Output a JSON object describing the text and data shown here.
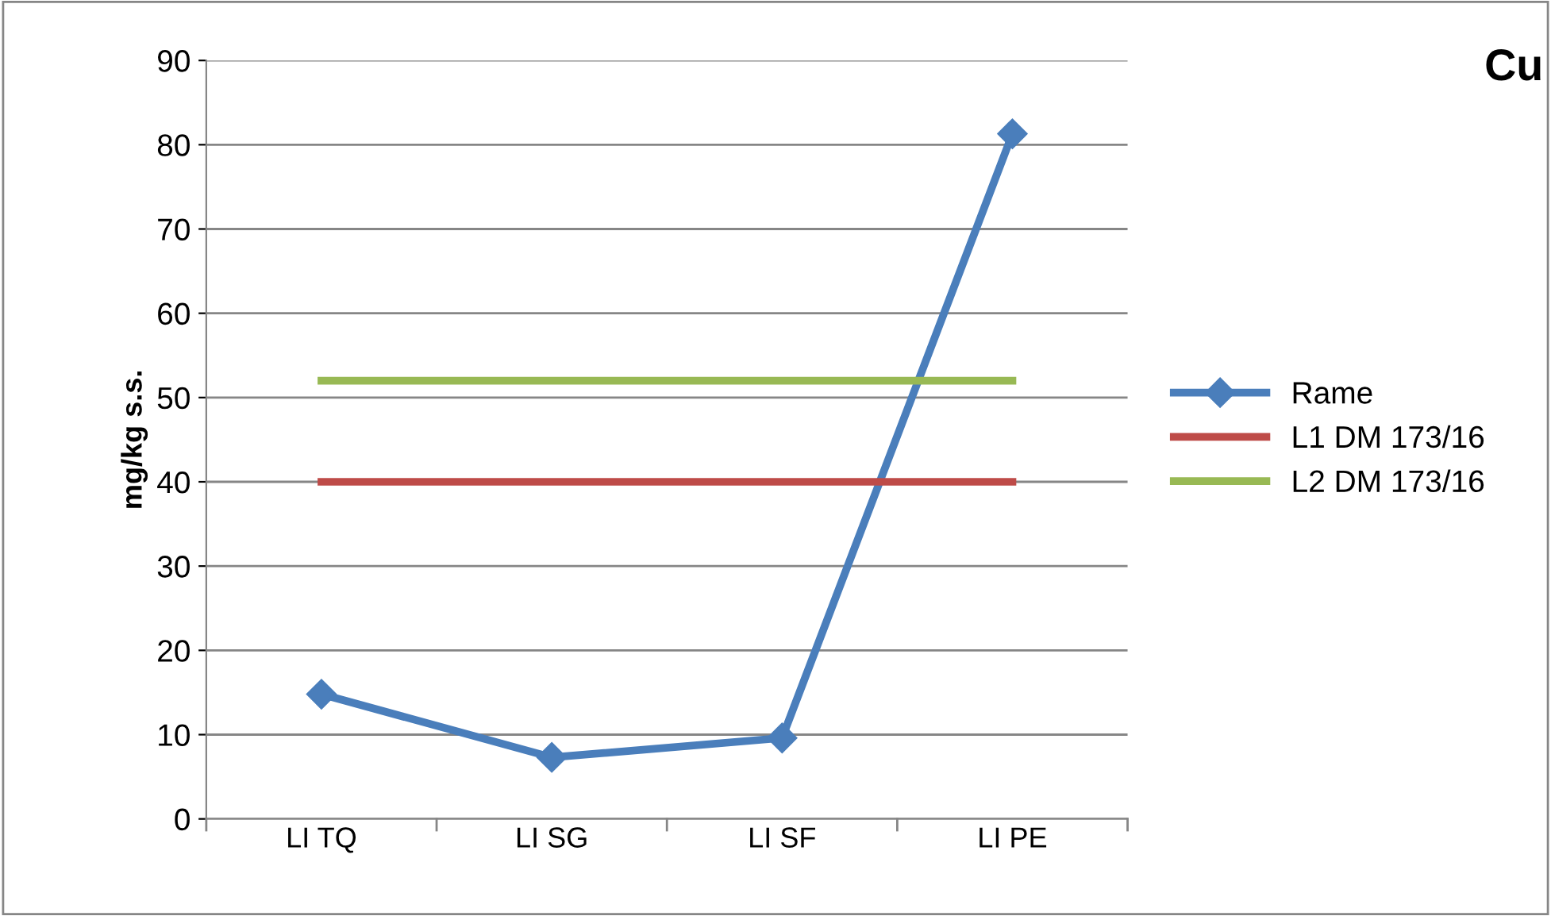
{
  "chart_data": {
    "type": "line",
    "title": "Cu",
    "ylabel": "mg/kg s.s.",
    "categories": [
      "LI TQ",
      "LI SG",
      "LI SF",
      "LI PE"
    ],
    "series": [
      {
        "name": "Rame",
        "color": "#4a7ebb",
        "values": [
          14.8,
          7.3,
          9.6,
          81.3
        ],
        "marker": "diamond"
      },
      {
        "name": "L1 DM 173/16",
        "color": "#be4b48",
        "values": [
          40,
          40,
          40,
          40
        ],
        "marker": "none"
      },
      {
        "name": "L2 DM 173/16",
        "color": "#98b954",
        "values": [
          52,
          52,
          52,
          52
        ],
        "marker": "none"
      }
    ],
    "ylim": [
      0,
      90
    ],
    "yticks": [
      0,
      10,
      20,
      30,
      40,
      50,
      60,
      70,
      80,
      90
    ],
    "grid": "y",
    "legend": "right",
    "line_style": "solid"
  }
}
